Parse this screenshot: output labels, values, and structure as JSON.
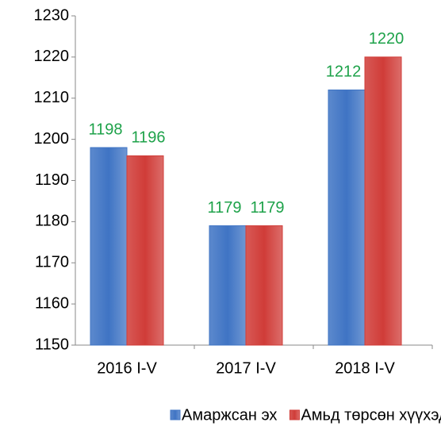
{
  "chart_data": {
    "type": "bar",
    "categories": [
      "2016 I-V",
      "2017 I-V",
      "2018 I-V"
    ],
    "series": [
      {
        "name": "Амаржсан эх",
        "color": "#3f74c4",
        "values": [
          1198,
          1179,
          1212
        ]
      },
      {
        "name": "Амьд төрсөн хүүхэд",
        "color": "#d03c38",
        "values": [
          1196,
          1179,
          1220
        ]
      }
    ],
    "ylim": [
      1150,
      1230
    ],
    "yticks": [
      1150,
      1160,
      1170,
      1180,
      1190,
      1200,
      1210,
      1220,
      1230
    ],
    "value_label_color": "#1ea24a",
    "legend": "bottom"
  }
}
